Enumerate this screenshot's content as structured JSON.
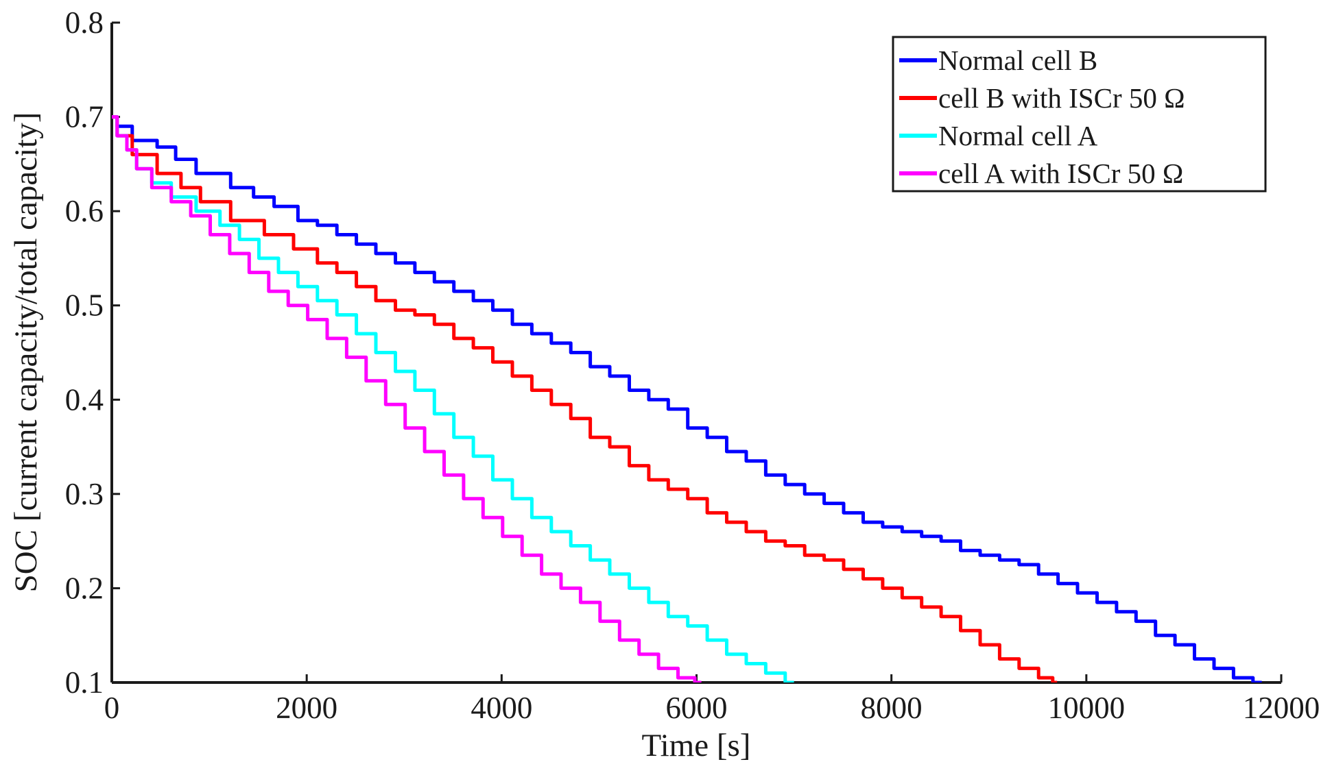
{
  "chart_data": {
    "type": "line",
    "title": "",
    "xlabel": "Time [s]",
    "ylabel": "SOC [current capacity/total capacity]",
    "xlim": [
      0,
      12000
    ],
    "ylim": [
      0.1,
      0.8
    ],
    "grid": false,
    "legend_position": "top-right",
    "xticks": [
      0,
      2000,
      4000,
      6000,
      8000,
      10000,
      12000
    ],
    "xtick_labels": [
      "0",
      "2000",
      "4000",
      "6000",
      "8000",
      "10000",
      "12000"
    ],
    "yticks": [
      0.1,
      0.2,
      0.3,
      0.4,
      0.5,
      0.6,
      0.7,
      0.8
    ],
    "ytick_labels": [
      "0.1",
      "0.2",
      "0.3",
      "0.4",
      "0.5",
      "0.6",
      "0.7",
      "0.8"
    ],
    "series": [
      {
        "name": "Normal cell B",
        "color": "#0000ff",
        "x": [
          0,
          100,
          300,
          600,
          700,
          1000,
          1400,
          1500,
          1800,
          2000,
          2200,
          2400,
          2600,
          2800,
          3000,
          3200,
          3400,
          3600,
          3800,
          4000,
          4200,
          4400,
          4600,
          4800,
          5000,
          5200,
          5400,
          5600,
          5800,
          6000,
          6200,
          6400,
          6600,
          6800,
          7000,
          7200,
          7400,
          7600,
          7800,
          8000,
          8200,
          8400,
          8600,
          8800,
          9000,
          9200,
          9400,
          9600,
          9800,
          10000,
          10200,
          10400,
          10600,
          10800,
          11000,
          11200,
          11400,
          11600,
          11800
        ],
        "y": [
          0.7,
          0.69,
          0.675,
          0.668,
          0.655,
          0.64,
          0.625,
          0.615,
          0.605,
          0.59,
          0.585,
          0.575,
          0.565,
          0.555,
          0.545,
          0.535,
          0.525,
          0.515,
          0.505,
          0.495,
          0.48,
          0.47,
          0.46,
          0.45,
          0.435,
          0.425,
          0.41,
          0.4,
          0.39,
          0.37,
          0.36,
          0.345,
          0.335,
          0.32,
          0.31,
          0.3,
          0.29,
          0.28,
          0.27,
          0.265,
          0.26,
          0.255,
          0.25,
          0.24,
          0.235,
          0.23,
          0.225,
          0.215,
          0.205,
          0.195,
          0.185,
          0.175,
          0.165,
          0.15,
          0.14,
          0.125,
          0.115,
          0.105,
          0.1
        ]
      },
      {
        "name": "cell B with ISCr 50 Ω",
        "color": "#ff0000",
        "x": [
          0,
          100,
          300,
          600,
          800,
          1000,
          1400,
          1700,
          2000,
          2200,
          2400,
          2600,
          2800,
          3000,
          3200,
          3400,
          3600,
          3800,
          4000,
          4200,
          4400,
          4600,
          4800,
          5000,
          5200,
          5400,
          5600,
          5800,
          6000,
          6200,
          6400,
          6600,
          6800,
          7000,
          7200,
          7400,
          7600,
          7800,
          8000,
          8200,
          8400,
          8600,
          8800,
          9000,
          9200,
          9400,
          9600,
          9700
        ],
        "y": [
          0.7,
          0.68,
          0.66,
          0.64,
          0.625,
          0.61,
          0.59,
          0.575,
          0.56,
          0.545,
          0.535,
          0.52,
          0.505,
          0.495,
          0.49,
          0.48,
          0.465,
          0.455,
          0.44,
          0.425,
          0.41,
          0.395,
          0.38,
          0.36,
          0.35,
          0.33,
          0.315,
          0.305,
          0.295,
          0.28,
          0.27,
          0.26,
          0.25,
          0.245,
          0.235,
          0.23,
          0.22,
          0.21,
          0.2,
          0.19,
          0.18,
          0.17,
          0.155,
          0.14,
          0.125,
          0.115,
          0.105,
          0.1
        ]
      },
      {
        "name": "Normal cell A",
        "color": "#00ffff",
        "x": [
          0,
          100,
          200,
          300,
          500,
          700,
          1000,
          1200,
          1400,
          1600,
          1800,
          2000,
          2200,
          2400,
          2600,
          2800,
          3000,
          3200,
          3400,
          3600,
          3800,
          4000,
          4200,
          4400,
          4600,
          4800,
          5000,
          5200,
          5400,
          5600,
          5800,
          6000,
          6200,
          6400,
          6600,
          6800,
          7000
        ],
        "y": [
          0.7,
          0.68,
          0.665,
          0.645,
          0.63,
          0.615,
          0.6,
          0.585,
          0.57,
          0.55,
          0.535,
          0.52,
          0.505,
          0.49,
          0.47,
          0.45,
          0.43,
          0.41,
          0.385,
          0.36,
          0.34,
          0.315,
          0.295,
          0.275,
          0.26,
          0.245,
          0.23,
          0.215,
          0.2,
          0.185,
          0.17,
          0.16,
          0.145,
          0.13,
          0.12,
          0.11,
          0.1
        ]
      },
      {
        "name": "cell A with ISCr 50 Ω",
        "color": "#ff00ff",
        "x": [
          0,
          100,
          200,
          300,
          500,
          700,
          900,
          1100,
          1300,
          1500,
          1700,
          1900,
          2100,
          2300,
          2500,
          2700,
          2900,
          3100,
          3300,
          3500,
          3700,
          3900,
          4100,
          4300,
          4500,
          4700,
          4900,
          5100,
          5300,
          5500,
          5700,
          5900,
          6050
        ],
        "y": [
          0.7,
          0.68,
          0.665,
          0.645,
          0.625,
          0.61,
          0.595,
          0.575,
          0.555,
          0.535,
          0.515,
          0.5,
          0.485,
          0.465,
          0.445,
          0.42,
          0.395,
          0.37,
          0.345,
          0.32,
          0.295,
          0.275,
          0.255,
          0.235,
          0.215,
          0.2,
          0.185,
          0.165,
          0.145,
          0.13,
          0.115,
          0.105,
          0.1
        ]
      }
    ]
  }
}
